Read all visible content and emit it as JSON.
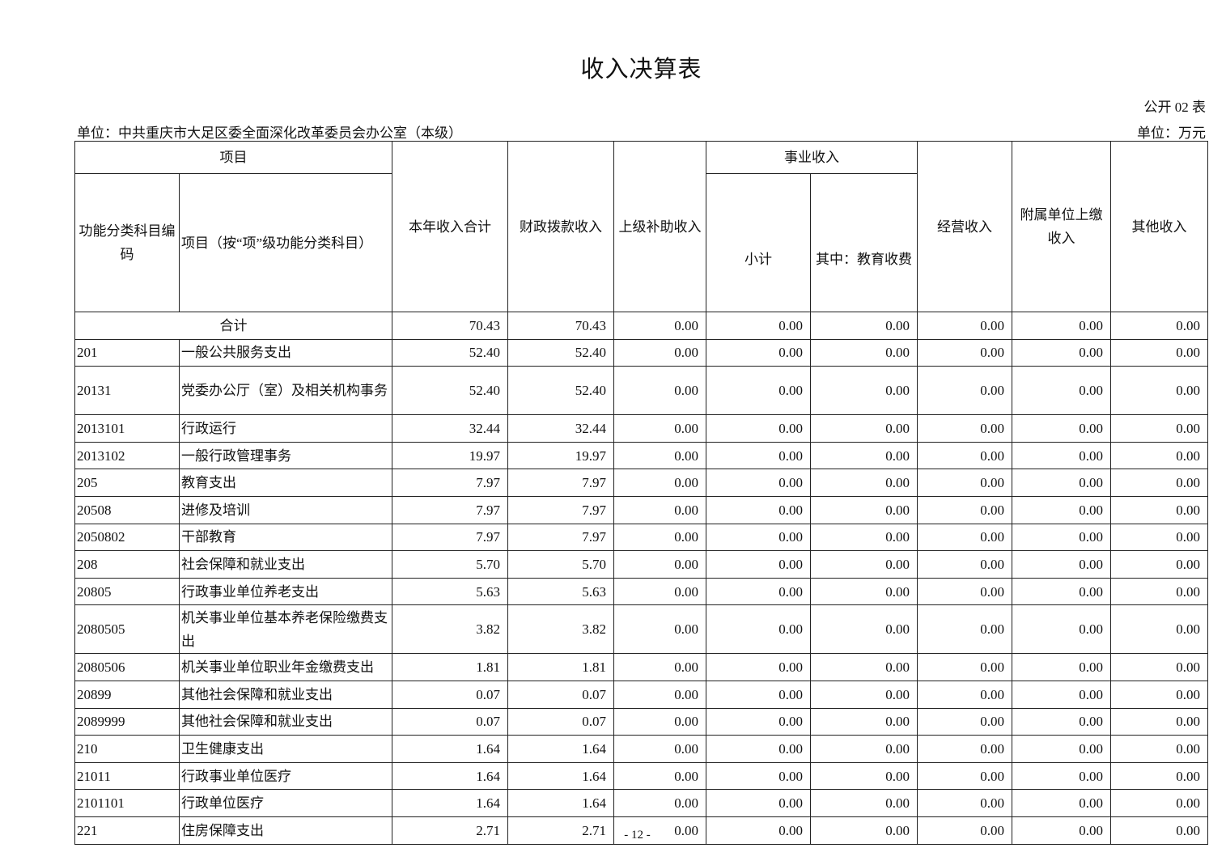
{
  "title": "收入决算表",
  "table_no": "公开 02 表",
  "unit_name": "单位：中共重庆市大足区委全面深化改革委员会办公室（本级）",
  "unit_currency": "单位：万元",
  "headers": {
    "project": "项目",
    "code": "功能分类科目编码",
    "name": "项目（按“项”级功能分类科目）",
    "total": "本年收入合计",
    "fiscal": "财政拨款收入",
    "superior": "上级补助收入",
    "business": "事业收入",
    "subtotal": "小计",
    "education": "其中：教育收费",
    "operating": "经营收入",
    "affiliated": "附属单位上缴收入",
    "other": "其他收入"
  },
  "total_row": {
    "label": "合计",
    "values": [
      "70.43",
      "70.43",
      "0.00",
      "0.00",
      "0.00",
      "0.00",
      "0.00",
      "0.00"
    ]
  },
  "rows": [
    {
      "code": "201",
      "name": "一般公共服务支出",
      "values": [
        "52.40",
        "52.40",
        "0.00",
        "0.00",
        "0.00",
        "0.00",
        "0.00",
        "0.00"
      ]
    },
    {
      "code": "20131",
      "name": "党委办公厅（室）及相关机构事务",
      "values": [
        "52.40",
        "52.40",
        "0.00",
        "0.00",
        "0.00",
        "0.00",
        "0.00",
        "0.00"
      ]
    },
    {
      "code": "2013101",
      "name": "行政运行",
      "values": [
        "32.44",
        "32.44",
        "0.00",
        "0.00",
        "0.00",
        "0.00",
        "0.00",
        "0.00"
      ]
    },
    {
      "code": "2013102",
      "name": "一般行政管理事务",
      "values": [
        "19.97",
        "19.97",
        "0.00",
        "0.00",
        "0.00",
        "0.00",
        "0.00",
        "0.00"
      ]
    },
    {
      "code": "205",
      "name": "教育支出",
      "values": [
        "7.97",
        "7.97",
        "0.00",
        "0.00",
        "0.00",
        "0.00",
        "0.00",
        "0.00"
      ]
    },
    {
      "code": "20508",
      "name": "进修及培训",
      "values": [
        "7.97",
        "7.97",
        "0.00",
        "0.00",
        "0.00",
        "0.00",
        "0.00",
        "0.00"
      ]
    },
    {
      "code": "2050802",
      "name": "干部教育",
      "values": [
        "7.97",
        "7.97",
        "0.00",
        "0.00",
        "0.00",
        "0.00",
        "0.00",
        "0.00"
      ]
    },
    {
      "code": "208",
      "name": "社会保障和就业支出",
      "values": [
        "5.70",
        "5.70",
        "0.00",
        "0.00",
        "0.00",
        "0.00",
        "0.00",
        "0.00"
      ]
    },
    {
      "code": "20805",
      "name": "行政事业单位养老支出",
      "values": [
        "5.63",
        "5.63",
        "0.00",
        "0.00",
        "0.00",
        "0.00",
        "0.00",
        "0.00"
      ]
    },
    {
      "code": "2080505",
      "name": "机关事业单位基本养老保险缴费支出",
      "values": [
        "3.82",
        "3.82",
        "0.00",
        "0.00",
        "0.00",
        "0.00",
        "0.00",
        "0.00"
      ]
    },
    {
      "code": "2080506",
      "name": "机关事业单位职业年金缴费支出",
      "values": [
        "1.81",
        "1.81",
        "0.00",
        "0.00",
        "0.00",
        "0.00",
        "0.00",
        "0.00"
      ]
    },
    {
      "code": "20899",
      "name": "其他社会保障和就业支出",
      "values": [
        "0.07",
        "0.07",
        "0.00",
        "0.00",
        "0.00",
        "0.00",
        "0.00",
        "0.00"
      ]
    },
    {
      "code": "2089999",
      "name": "其他社会保障和就业支出",
      "values": [
        "0.07",
        "0.07",
        "0.00",
        "0.00",
        "0.00",
        "0.00",
        "0.00",
        "0.00"
      ]
    },
    {
      "code": "210",
      "name": "卫生健康支出",
      "values": [
        "1.64",
        "1.64",
        "0.00",
        "0.00",
        "0.00",
        "0.00",
        "0.00",
        "0.00"
      ]
    },
    {
      "code": "21011",
      "name": "行政事业单位医疗",
      "values": [
        "1.64",
        "1.64",
        "0.00",
        "0.00",
        "0.00",
        "0.00",
        "0.00",
        "0.00"
      ]
    },
    {
      "code": "2101101",
      "name": "行政单位医疗",
      "values": [
        "1.64",
        "1.64",
        "0.00",
        "0.00",
        "0.00",
        "0.00",
        "0.00",
        "0.00"
      ]
    },
    {
      "code": "221",
      "name": "住房保障支出",
      "values": [
        "2.71",
        "2.71",
        "0.00",
        "0.00",
        "0.00",
        "0.00",
        "0.00",
        "0.00"
      ]
    }
  ],
  "page_number": "- 12 -"
}
